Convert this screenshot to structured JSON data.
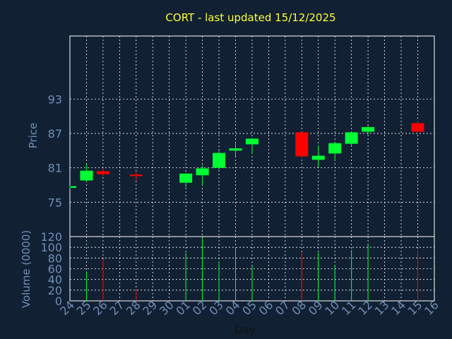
{
  "chart_data": {
    "type": "candlestick",
    "title": "CORT - last updated 15/12/2025",
    "colors": {
      "background": "#112033",
      "up": "#00ff33",
      "down": "#ff0000",
      "title": "#ffff33",
      "axis_text": "#6f8fb8",
      "grid": "#ffffff"
    },
    "price_panel": {
      "ylabel": "Price",
      "ylim": [
        69,
        104
      ],
      "yticks": [
        75,
        81,
        87,
        93
      ]
    },
    "volume_panel": {
      "ylabel": "Volume (0000)",
      "ylim": [
        0,
        120
      ],
      "yticks": [
        0,
        20,
        40,
        60,
        80,
        100,
        120
      ]
    },
    "xlabel": "Day",
    "x_tick_labels": [
      "24",
      "25",
      "26",
      "27",
      "28",
      "29",
      "30",
      "01",
      "02",
      "03",
      "04",
      "05",
      "06",
      "07",
      "08",
      "09",
      "10",
      "11",
      "12",
      "13",
      "14",
      "15",
      "16"
    ],
    "candles": [
      {
        "day": "24",
        "x": 0,
        "open": 77.5,
        "close": 77.8,
        "high": 77.9,
        "low": 77.4,
        "volume": 0
      },
      {
        "day": "25",
        "x": 1,
        "open": 78.8,
        "close": 80.5,
        "high": 81.6,
        "low": 78.6,
        "volume": 55
      },
      {
        "day": "26",
        "x": 2,
        "open": 80.4,
        "close": 79.9,
        "high": 81.0,
        "low": 79.5,
        "volume": 78
      },
      {
        "day": "28",
        "x": 4,
        "open": 79.8,
        "close": 79.6,
        "high": 80.2,
        "low": 78.8,
        "volume": 20
      },
      {
        "day": "01",
        "x": 7,
        "open": 78.4,
        "close": 80.0,
        "high": 80.1,
        "low": 77.6,
        "volume": 90
      },
      {
        "day": "02",
        "x": 8,
        "open": 79.7,
        "close": 80.9,
        "high": 81.4,
        "low": 78.0,
        "volume": 117
      },
      {
        "day": "03",
        "x": 9,
        "open": 81.0,
        "close": 83.6,
        "high": 84.0,
        "low": 80.7,
        "volume": 74
      },
      {
        "day": "04",
        "x": 10,
        "open": 84.0,
        "close": 84.4,
        "high": 85.6,
        "low": 83.0,
        "volume": 100
      },
      {
        "day": "05",
        "x": 11,
        "open": 85.1,
        "close": 86.1,
        "high": 86.2,
        "low": 83.5,
        "volume": 65
      },
      {
        "day": "08",
        "x": 14,
        "open": 87.2,
        "close": 83.0,
        "high": 87.3,
        "low": 82.8,
        "volume": 90
      },
      {
        "day": "09",
        "x": 15,
        "open": 82.4,
        "close": 83.1,
        "high": 84.9,
        "low": 81.2,
        "volume": 90
      },
      {
        "day": "10",
        "x": 16,
        "open": 83.5,
        "close": 85.3,
        "high": 85.4,
        "low": 82.3,
        "volume": 67
      },
      {
        "day": "11",
        "x": 17,
        "open": 85.2,
        "close": 87.2,
        "high": 87.4,
        "low": 84.8,
        "volume": 95
      },
      {
        "day": "12",
        "x": 18,
        "open": 87.3,
        "close": 88.1,
        "high": 88.3,
        "low": 86.8,
        "volume": 105
      },
      {
        "day": "15",
        "x": 21,
        "open": 88.8,
        "close": 87.3,
        "high": 89.2,
        "low": 87.1,
        "volume": 95
      }
    ]
  }
}
